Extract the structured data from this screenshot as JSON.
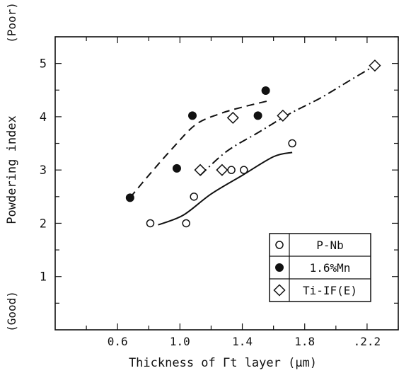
{
  "chart_data": {
    "type": "scatter",
    "xlabel": "Thickness of Γt layer (μm)",
    "ylabel": "Powdering index",
    "y_top_note": "(Poor)",
    "y_bottom_note": "(Good)",
    "xlim": [
      0.2,
      2.4
    ],
    "ylim": [
      0,
      5.5
    ],
    "x_ticks": [
      0.6,
      1.0,
      1.4,
      1.8,
      2.2
    ],
    "x_tick_labels": [
      "0.6",
      "1.0",
      "1.4",
      "1.8",
      ".2.2"
    ],
    "y_ticks": [
      1,
      2,
      3,
      4,
      5
    ],
    "y_tick_labels": [
      "1",
      "2",
      "3",
      "4",
      "5"
    ],
    "grid": false,
    "legend_position": "bottom-right",
    "series": [
      {
        "name": "P-Nb",
        "marker": "open-circle",
        "line_style": "solid",
        "points": [
          [
            0.81,
            2.0
          ],
          [
            1.04,
            2.0
          ],
          [
            1.09,
            2.5
          ],
          [
            1.33,
            3.0
          ],
          [
            1.41,
            3.0
          ],
          [
            1.72,
            3.5
          ]
        ],
        "trend": [
          [
            0.86,
            1.97
          ],
          [
            1.02,
            2.15
          ],
          [
            1.2,
            2.55
          ],
          [
            1.4,
            2.9
          ],
          [
            1.6,
            3.25
          ],
          [
            1.72,
            3.33
          ]
        ]
      },
      {
        "name": "1.6%Mn",
        "marker": "filled-circle",
        "line_style": "dashed",
        "points": [
          [
            0.68,
            2.48
          ],
          [
            0.98,
            3.03
          ],
          [
            1.08,
            4.02
          ],
          [
            1.5,
            4.02
          ],
          [
            1.55,
            4.49
          ]
        ],
        "trend": [
          [
            0.68,
            2.48
          ],
          [
            0.8,
            2.9
          ],
          [
            0.95,
            3.4
          ],
          [
            1.1,
            3.85
          ],
          [
            1.25,
            4.05
          ],
          [
            1.4,
            4.18
          ],
          [
            1.57,
            4.3
          ]
        ]
      },
      {
        "name": "Ti-IF(E)",
        "marker": "open-diamond",
        "line_style": "dash-dot",
        "points": [
          [
            1.13,
            3.0
          ],
          [
            1.27,
            3.0
          ],
          [
            1.34,
            3.98
          ],
          [
            1.66,
            4.02
          ],
          [
            2.25,
            4.96
          ]
        ],
        "trend": [
          [
            1.13,
            2.9
          ],
          [
            1.3,
            3.35
          ],
          [
            1.5,
            3.7
          ],
          [
            1.7,
            4.05
          ],
          [
            1.9,
            4.35
          ],
          [
            2.1,
            4.7
          ],
          [
            2.25,
            4.96
          ]
        ]
      }
    ]
  }
}
